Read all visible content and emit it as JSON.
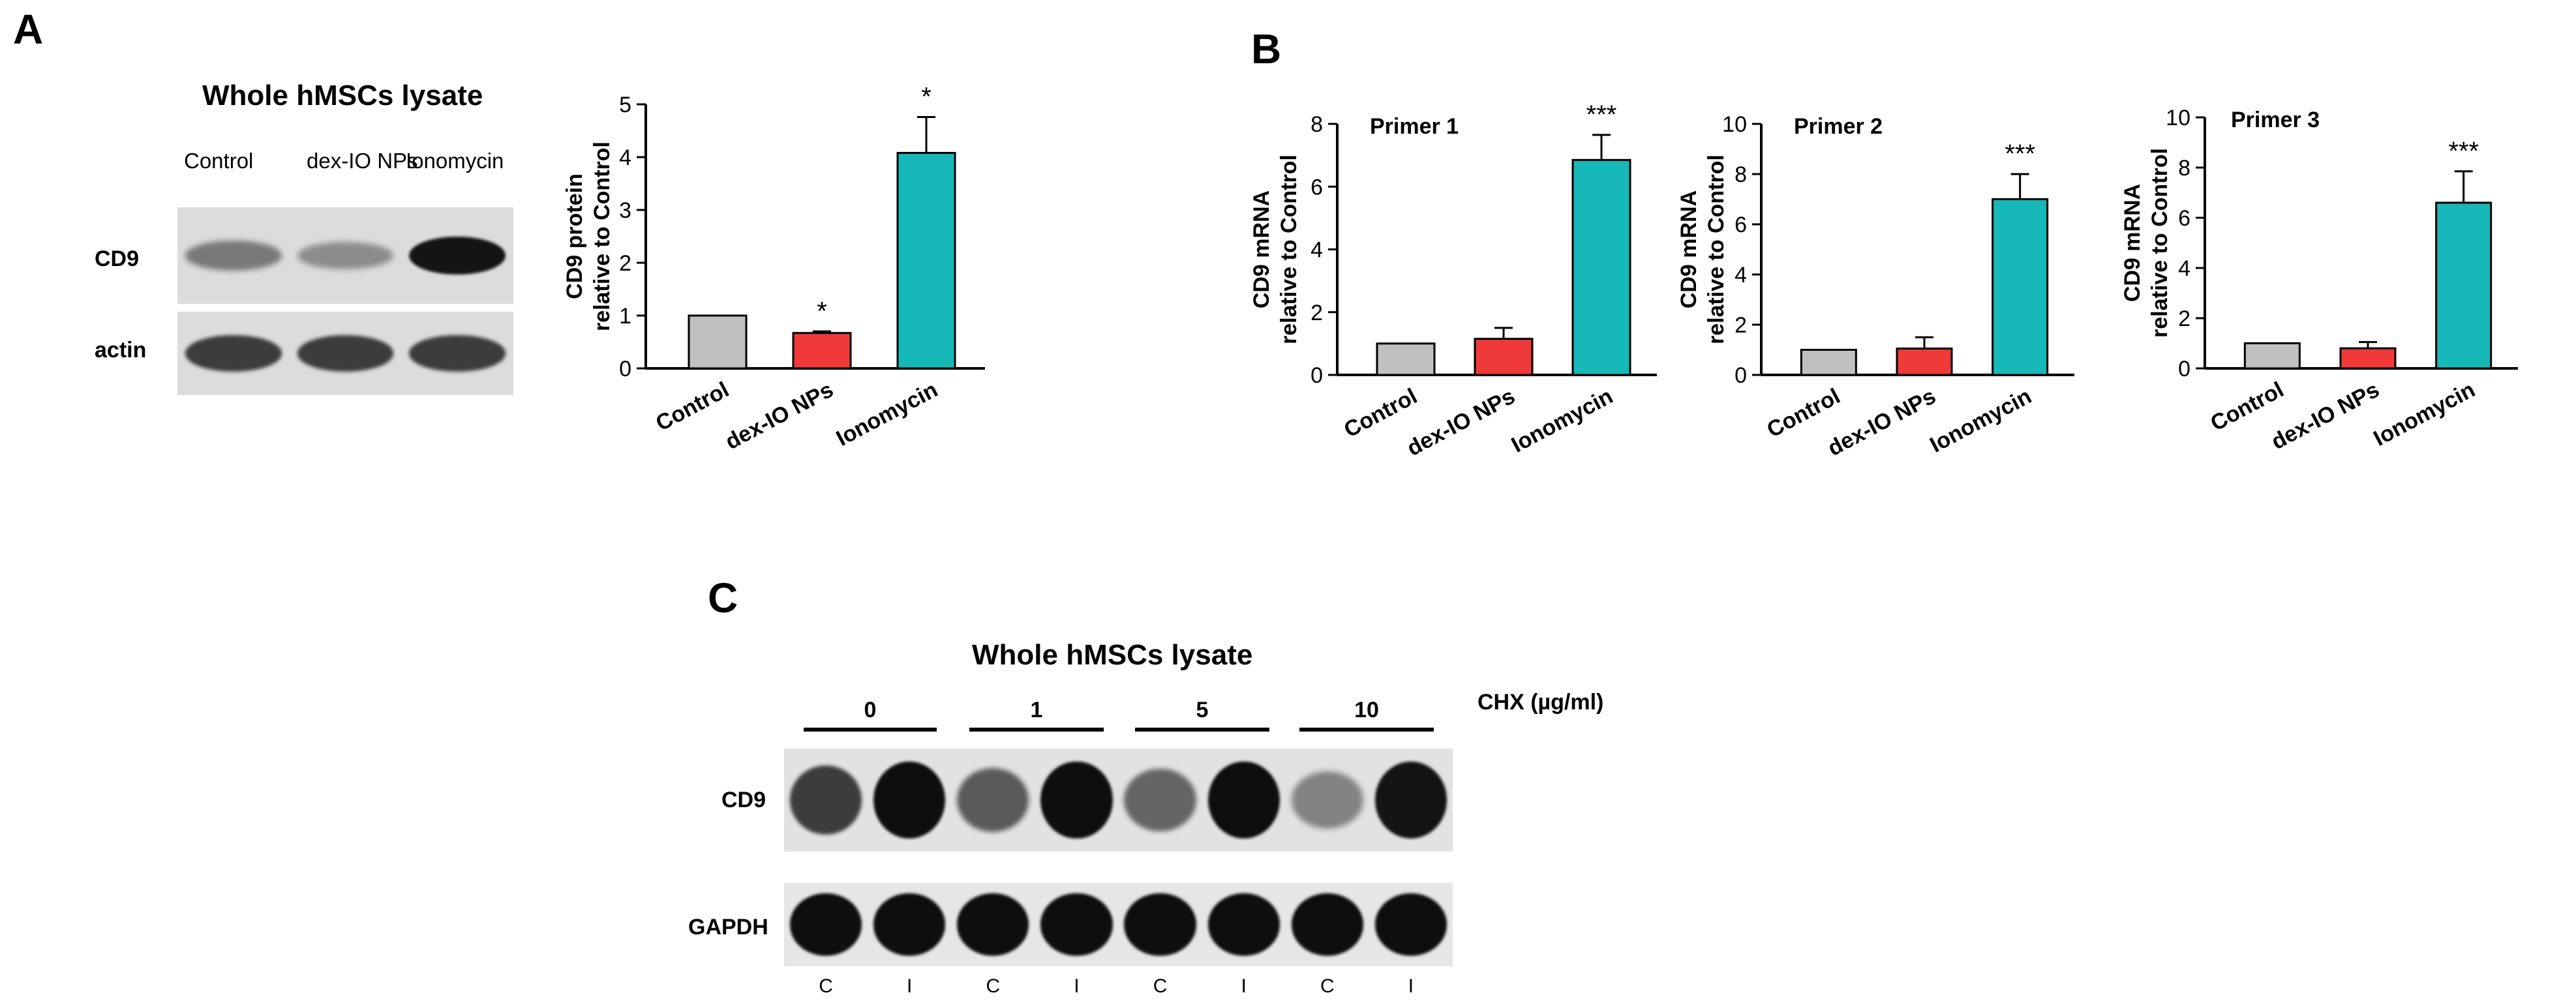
{
  "panels": {
    "a_letter": "A",
    "b_letter": "B",
    "c_letter": "C"
  },
  "blot_a": {
    "title": "Whole hMSCs lysate",
    "lanes": [
      "Control",
      "dex-IO NPs",
      "Ionomycin"
    ],
    "rows": [
      "CD9",
      "actin"
    ],
    "cd9_intensity": [
      0.45,
      0.35,
      0.95
    ],
    "actin_intensity": [
      0.75,
      0.75,
      0.75
    ]
  },
  "blot_c": {
    "title": "Whole hMSCs lysate",
    "concentration_label": "CHX (µg/ml)",
    "concentrations": [
      "0",
      "1",
      "5",
      "10"
    ],
    "rows": [
      "CD9",
      "GAPDH"
    ],
    "lane_labels": [
      "C",
      "I",
      "C",
      "I",
      "C",
      "I",
      "C",
      "I"
    ],
    "cd9_intensity": [
      0.75,
      0.98,
      0.6,
      0.98,
      0.55,
      0.98,
      0.4,
      0.95
    ],
    "gapdh_intensity": [
      0.98,
      0.98,
      0.98,
      0.98,
      0.98,
      0.98,
      0.98,
      0.98
    ]
  },
  "colors": {
    "control": "#c0c0c0",
    "dex_io_nps": "#f03a3a",
    "ionomycin": "#17b8b8"
  },
  "chart_data": [
    {
      "type": "bar",
      "categories": [
        "Control",
        "dex-IO NPs",
        "Ionomycin"
      ],
      "values": [
        1.0,
        0.67,
        4.08
      ],
      "errors": [
        0,
        0.03,
        0.68
      ],
      "annotations": [
        "",
        "*",
        "*"
      ],
      "title": "",
      "xlabel": "",
      "ylabel": [
        "CD9 protein",
        "relative to Control"
      ],
      "ylim": [
        0,
        5
      ],
      "yticks": [
        0,
        1,
        2,
        3,
        4,
        5
      ],
      "grid": false
    },
    {
      "type": "bar",
      "categories": [
        "Control",
        "dex-IO NPs",
        "Ionomycin"
      ],
      "values": [
        1.0,
        1.15,
        6.85
      ],
      "errors": [
        0,
        0.35,
        0.8
      ],
      "annotations": [
        "",
        "",
        "***"
      ],
      "title": "Primer 1",
      "xlabel": "",
      "ylabel": [
        "CD9 mRNA",
        "relative to Control"
      ],
      "ylim": [
        0,
        8
      ],
      "yticks": [
        0,
        2,
        4,
        6,
        8
      ],
      "grid": false
    },
    {
      "type": "bar",
      "categories": [
        "Control",
        "dex-IO NPs",
        "Ionomycin"
      ],
      "values": [
        1.0,
        1.05,
        7.0
      ],
      "errors": [
        0,
        0.45,
        1.0
      ],
      "annotations": [
        "",
        "",
        "***"
      ],
      "title": "Primer 2",
      "xlabel": "",
      "ylabel": [
        "CD9 mRNA",
        "relative to Control"
      ],
      "ylim": [
        0,
        10
      ],
      "yticks": [
        0,
        2,
        4,
        6,
        8,
        10
      ],
      "grid": false
    },
    {
      "type": "bar",
      "categories": [
        "Control",
        "dex-IO NPs",
        "Ionomycin"
      ],
      "values": [
        1.0,
        0.8,
        6.6
      ],
      "errors": [
        0,
        0.25,
        1.25
      ],
      "annotations": [
        "",
        "",
        "***"
      ],
      "title": "Primer 3",
      "xlabel": "",
      "ylabel": [
        "CD9 mRNA",
        "relative to Control"
      ],
      "ylim": [
        0,
        10
      ],
      "yticks": [
        0,
        2,
        4,
        6,
        8,
        10
      ],
      "grid": false
    }
  ]
}
